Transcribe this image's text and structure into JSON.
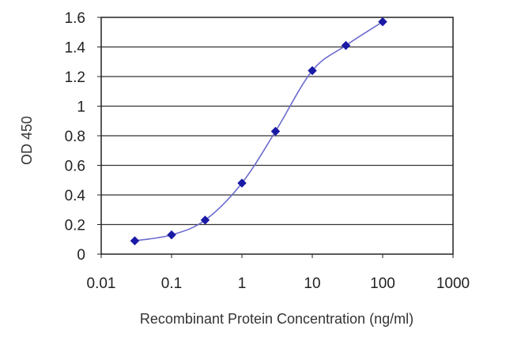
{
  "chart_data": {
    "type": "line",
    "title": "",
    "xlabel": "Recombinant Protein Concentration (ng/ml)",
    "ylabel": "OD 450",
    "x_scale": "log",
    "xlim": [
      0.01,
      1000
    ],
    "ylim": [
      0,
      1.6
    ],
    "x_ticks": [
      0.01,
      0.1,
      1,
      10,
      100,
      1000
    ],
    "x_tick_labels": [
      "0.01",
      "0.1",
      "1",
      "10",
      "100",
      "1000"
    ],
    "y_ticks": [
      0,
      0.2,
      0.4,
      0.6,
      0.8,
      1,
      1.2,
      1.4,
      1.6
    ],
    "y_tick_labels": [
      "0",
      "0.2",
      "0.4",
      "0.6",
      "0.8",
      "1",
      "1.2",
      "1.4",
      "1.6"
    ],
    "grid": "horizontal",
    "legend": "none",
    "series": [
      {
        "x": [
          0.03,
          0.1,
          0.3,
          1,
          3,
          10,
          30,
          100
        ],
        "y": [
          0.09,
          0.13,
          0.23,
          0.48,
          0.83,
          1.24,
          1.41,
          1.57
        ],
        "color": "#1a1aa6",
        "line_color": "#6b6bcf"
      }
    ]
  }
}
